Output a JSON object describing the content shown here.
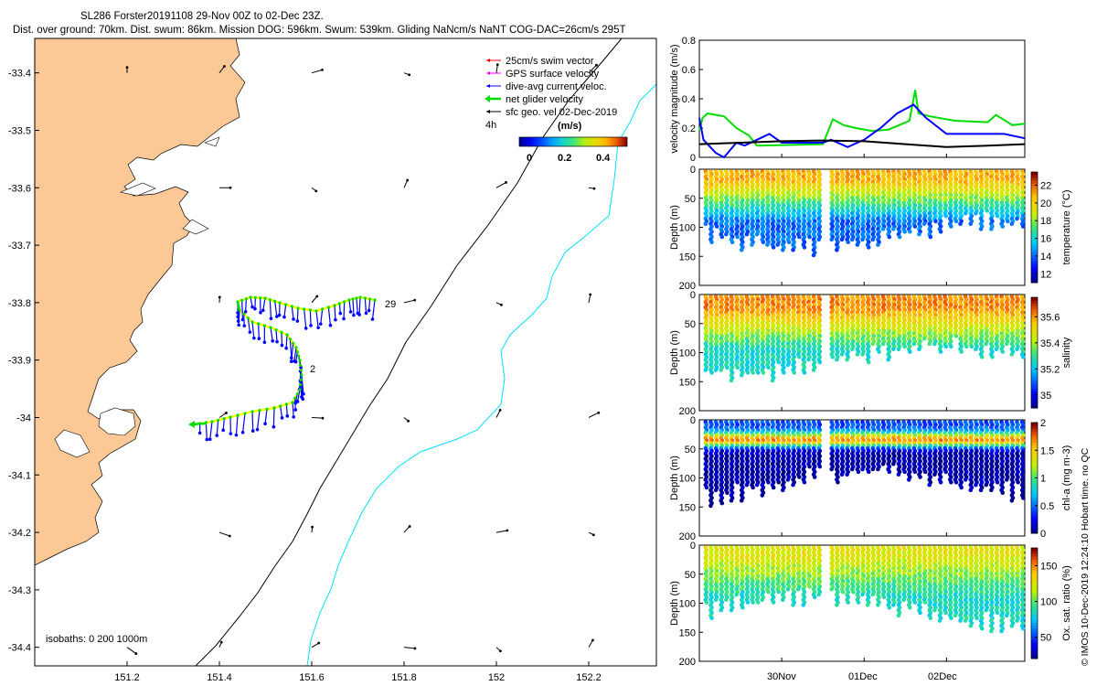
{
  "header": {
    "title": "SL286 Forster20191108 29-Nov 00Z to 02-Dec 23Z.",
    "stats": "Dist. over ground: 70km. Dist. swum: 86km. Mission DOG: 596km. Swum: 539km. Gliding NaNcm/s NaNT COG-DAC=26cm/s 295T"
  },
  "colors": {
    "land": "#fcc896",
    "bathy_shelf": "#00e0ff",
    "bathy_deep": "#000000",
    "track": "#ffff00",
    "dac": "#0000ff",
    "net": "#00dd00",
    "swim": "#ff0000",
    "gps": "#ff00ff"
  },
  "map": {
    "legend": {
      "swim": "25cm/s swim vector",
      "gps": "GPS surface velocity",
      "dac": "dive-avg current veloc.",
      "net": "net glider velocity",
      "sfc": "sfc geo. vel 02-Dec-2019",
      "interval": "4h"
    },
    "colorbar": {
      "title": "(m/s)",
      "ticks": [
        "0",
        "0.2",
        "0.4"
      ]
    },
    "day_labels": [
      "29",
      "2"
    ],
    "isobath_note": "isobaths: 0   200  1000m",
    "xticks": [
      "151.2",
      "151.4",
      "151.6",
      "151.8",
      "152",
      "152.2"
    ],
    "yticks": [
      "-33.4",
      "-33.5",
      "-33.6",
      "-33.7",
      "-33.8",
      "-33.9",
      "-34",
      "-34.1",
      "-34.2",
      "-34.3",
      "-34.4"
    ]
  },
  "chart_data": [
    {
      "type": "line",
      "title": "velocity magnitude",
      "xlabel": "",
      "ylabel": "velocity magnitude (m/s)",
      "ylim": [
        0,
        0.8
      ],
      "yticks": [
        "0",
        "0.2",
        "0.4",
        "0.6",
        "0.8"
      ],
      "x_days": [
        0,
        3.95
      ],
      "series": [
        {
          "name": "net glider velocity",
          "color": "#00dd00",
          "x": [
            0.0,
            0.04,
            0.1,
            0.3,
            0.45,
            0.6,
            0.7,
            1.5,
            1.62,
            1.75,
            1.9,
            2.1,
            2.3,
            2.55,
            2.62,
            2.66,
            2.8,
            3.1,
            3.5,
            3.6,
            3.8,
            3.95
          ],
          "y": [
            0.18,
            0.27,
            0.3,
            0.28,
            0.2,
            0.15,
            0.08,
            0.09,
            0.26,
            0.22,
            0.2,
            0.18,
            0.19,
            0.25,
            0.46,
            0.3,
            0.28,
            0.25,
            0.24,
            0.29,
            0.22,
            0.23
          ]
        },
        {
          "name": "dive-avg current",
          "color": "#0000ff",
          "x": [
            0.0,
            0.05,
            0.2,
            0.3,
            0.45,
            0.55,
            0.7,
            0.85,
            1.0,
            1.5,
            1.6,
            1.8,
            2.0,
            2.2,
            2.4,
            2.6,
            2.75,
            3.0,
            3.4,
            3.7,
            3.95
          ],
          "y": [
            0.27,
            0.12,
            0.03,
            0.0,
            0.1,
            0.08,
            0.12,
            0.16,
            0.1,
            0.1,
            0.12,
            0.07,
            0.12,
            0.2,
            0.3,
            0.36,
            0.27,
            0.16,
            0.16,
            0.16,
            0.13
          ]
        },
        {
          "name": "sfc geo. vel",
          "color": "#000000",
          "x": [
            0.0,
            0.5,
            1.0,
            1.5,
            2.0,
            2.5,
            3.0,
            3.5,
            3.95
          ],
          "y": [
            0.09,
            0.1,
            0.11,
            0.115,
            0.11,
            0.09,
            0.07,
            0.08,
            0.09
          ]
        }
      ]
    },
    {
      "type": "scatter",
      "title": "temperature section",
      "ylabel": "Depth (m)",
      "clabel": "temperature (°C)",
      "ylim": [
        0,
        200
      ],
      "yticks": [
        "0",
        "50",
        "100",
        "150",
        "200"
      ],
      "clim": [
        11,
        23.5
      ],
      "cticks": [
        "12",
        "14",
        "16",
        "18",
        "20",
        "22"
      ],
      "surface_value": 21,
      "deep_value": 14,
      "mixed_layer_m": 35
    },
    {
      "type": "scatter",
      "title": "salinity section",
      "ylabel": "Depth (m)",
      "clabel": "salinity",
      "ylim": [
        0,
        200
      ],
      "yticks": [
        "0",
        "50",
        "100",
        "150",
        "200"
      ],
      "clim": [
        34.9,
        35.75
      ],
      "cticks": [
        "35",
        "35.2",
        "35.4",
        "35.6"
      ],
      "surface_value": 35.62,
      "deep_value": 35.25,
      "mixed_layer_m": 40
    },
    {
      "type": "scatter",
      "title": "chlorophyll section",
      "ylabel": "Depth (m)",
      "clabel": "chl-a (mg m-3)",
      "ylim": [
        0,
        200
      ],
      "yticks": [
        "0",
        "50",
        "100",
        "150",
        "200"
      ],
      "clim": [
        0,
        2
      ],
      "cticks": [
        "0",
        "0.5",
        "1",
        "1.5",
        "2"
      ],
      "surface_value": 0.4,
      "max_value": 1.7,
      "deep_value": 0.05,
      "mixed_layer_m": 35
    },
    {
      "type": "scatter",
      "title": "oxygen saturation section",
      "ylabel": "Depth (m)",
      "clabel": "Ox. sat. ratio (%)",
      "ylim": [
        0,
        200
      ],
      "yticks": [
        "0",
        "50",
        "100",
        "150",
        "200"
      ],
      "clim": [
        20,
        175
      ],
      "cticks": [
        "50",
        "100",
        "150"
      ],
      "surface_value": 125,
      "deep_value": 85,
      "mixed_layer_m": 35
    }
  ],
  "time_axis": {
    "ticks": [
      "30Nov",
      "01Dec",
      "02Dec"
    ]
  },
  "footer": {
    "stamp": "© IMOS 10-Dec-2019 12:24:10 Hobart time. no QC"
  }
}
